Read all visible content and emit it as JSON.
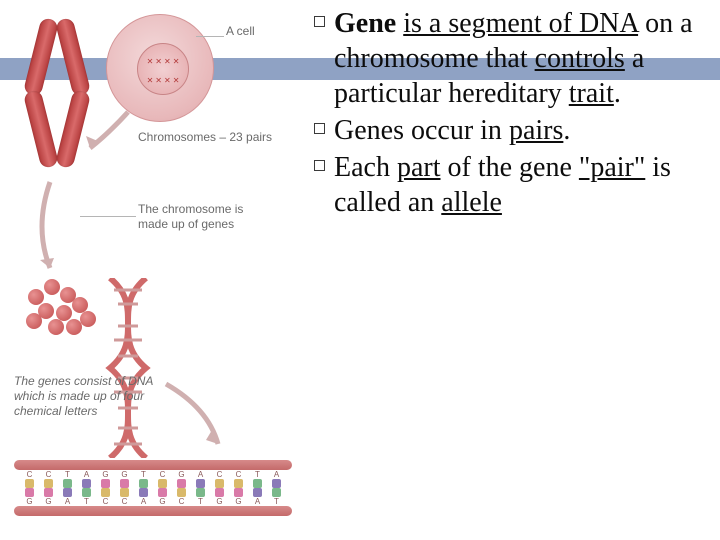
{
  "header_band_color": "#8fa2c4",
  "text": {
    "bullets": [
      {
        "bold": "Gene",
        "rest_html": " <span class='ul'>is a segment of DNA</span> on a chromosome that <span class='ul'>controls</span> a particular hereditary <span class='ul'>trait</span>."
      },
      {
        "plain_html": "Genes occur in <span class='ul'>pairs</span>."
      },
      {
        "plain_html": "Each <span class='ul'>part</span> of the gene <span class='ul'>\"pair\"</span> is called an <span class='ul'>allele</span>"
      }
    ]
  },
  "diagram": {
    "label_cell": "A cell",
    "label_chromosomes": "Chromosomes – 23 pairs",
    "label_chromo_genes": "The chromosome is\nmade up of genes",
    "label_genes_dna": "The genes consist of DNA\nwhich is made up of four\nchemical letters",
    "label_color": "#6a6a6a",
    "label_fontsize": 12,
    "chromosome_color": "#c14c4c",
    "cell_fill": "#e8b8ba",
    "nucleus_fill": "#e4a8aa",
    "helix_color": "#cf6a6a",
    "ladder": {
      "top_letters": [
        "C",
        "C",
        "T",
        "A",
        "G",
        "G",
        "T",
        "C",
        "G",
        "A",
        "C",
        "C",
        "T",
        "A"
      ],
      "bottom_letters": [
        "G",
        "G",
        "A",
        "T",
        "C",
        "C",
        "A",
        "G",
        "C",
        "T",
        "G",
        "G",
        "A",
        "T"
      ],
      "colors": {
        "C": "#d9b96a",
        "G": "#d97aa8",
        "A": "#8a7ab8",
        "T": "#7ab88a"
      },
      "rail_color": "#c46a6a"
    }
  }
}
